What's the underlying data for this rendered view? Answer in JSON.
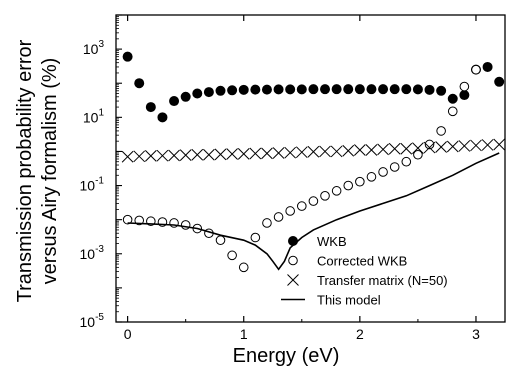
{
  "chart_data": {
    "type": "scatter",
    "xlabel": "Energy (eV)",
    "ylabel_lines": [
      "Transmission probability error",
      "versus Airy formalism (%)"
    ],
    "xlim": [
      -0.1,
      3.25
    ],
    "ylim": [
      1e-05,
      10000
    ],
    "yscale": "log",
    "xticks": [
      0,
      1,
      2,
      3
    ],
    "yticks": [
      {
        "value": 1e-05,
        "base": "10",
        "exp": "-5"
      },
      {
        "value": 0.001,
        "base": "10",
        "exp": "-3"
      },
      {
        "value": 0.1,
        "base": "10",
        "exp": "-1"
      },
      {
        "value": 10,
        "base": "10",
        "exp": "1"
      },
      {
        "value": 1000,
        "base": "10",
        "exp": "3"
      }
    ],
    "legend_position": "lower-right",
    "series": [
      {
        "name": "WKB",
        "marker": "filled-circle",
        "x": [
          0.0,
          0.1,
          0.2,
          0.3,
          0.4,
          0.5,
          0.6,
          0.7,
          0.8,
          0.9,
          1.0,
          1.1,
          1.2,
          1.3,
          1.4,
          1.5,
          1.6,
          1.7,
          1.8,
          1.9,
          2.0,
          2.1,
          2.2,
          2.3,
          2.4,
          2.5,
          2.6,
          2.7,
          2.8,
          2.9,
          3.0,
          3.1,
          3.2
        ],
        "y": [
          600,
          100,
          20,
          10,
          30,
          40,
          50,
          55,
          60,
          62,
          64,
          65,
          65,
          66,
          66,
          66,
          67,
          67,
          67,
          67,
          67,
          67,
          67,
          67,
          67,
          66,
          64,
          60,
          35,
          45,
          250,
          300,
          110
        ]
      },
      {
        "name": "Corrected WKB",
        "marker": "open-circle",
        "x": [
          0.0,
          0.1,
          0.2,
          0.3,
          0.4,
          0.5,
          0.6,
          0.7,
          0.8,
          0.9,
          1.0,
          1.1,
          1.2,
          1.3,
          1.4,
          1.5,
          1.6,
          1.7,
          1.8,
          1.9,
          2.0,
          2.1,
          2.2,
          2.3,
          2.4,
          2.5,
          2.6,
          2.7,
          2.8,
          2.9,
          3.0
        ],
        "y": [
          0.01,
          0.0095,
          0.009,
          0.0085,
          0.008,
          0.007,
          0.0055,
          0.004,
          0.0025,
          0.0009,
          0.0004,
          0.003,
          0.008,
          0.012,
          0.018,
          0.025,
          0.035,
          0.05,
          0.07,
          0.1,
          0.13,
          0.18,
          0.25,
          0.35,
          0.5,
          0.8,
          1.6,
          4,
          15,
          80,
          250
        ]
      },
      {
        "name": "Transfer matrix (N=50)",
        "marker": "x",
        "x": [
          0.0,
          0.1,
          0.2,
          0.3,
          0.4,
          0.5,
          0.6,
          0.7,
          0.8,
          0.9,
          1.0,
          1.1,
          1.2,
          1.3,
          1.4,
          1.5,
          1.6,
          1.7,
          1.8,
          1.9,
          2.0,
          2.1,
          2.2,
          2.3,
          2.4,
          2.5,
          2.6,
          2.7,
          2.8,
          2.9,
          3.0,
          3.1,
          3.2
        ],
        "y": [
          0.7,
          0.72,
          0.74,
          0.75,
          0.76,
          0.78,
          0.8,
          0.8,
          0.82,
          0.84,
          0.85,
          0.87,
          0.88,
          0.9,
          0.92,
          0.95,
          0.98,
          1.0,
          1.0,
          1.05,
          1.1,
          1.1,
          1.15,
          1.2,
          1.2,
          1.25,
          1.3,
          1.35,
          1.4,
          1.45,
          1.5,
          1.55,
          1.6
        ]
      },
      {
        "name": "This model",
        "marker": "line",
        "x": [
          0.0,
          0.2,
          0.4,
          0.6,
          0.8,
          1.0,
          1.1,
          1.2,
          1.25,
          1.3,
          1.35,
          1.4,
          1.5,
          1.6,
          1.8,
          2.0,
          2.2,
          2.4,
          2.6,
          2.8,
          3.0,
          3.2
        ],
        "y": [
          0.008,
          0.0075,
          0.007,
          0.0055,
          0.0035,
          0.0025,
          0.0018,
          0.001,
          0.0006,
          0.00035,
          0.0006,
          0.0015,
          0.003,
          0.005,
          0.01,
          0.018,
          0.03,
          0.05,
          0.1,
          0.2,
          0.45,
          0.9
        ]
      }
    ]
  }
}
